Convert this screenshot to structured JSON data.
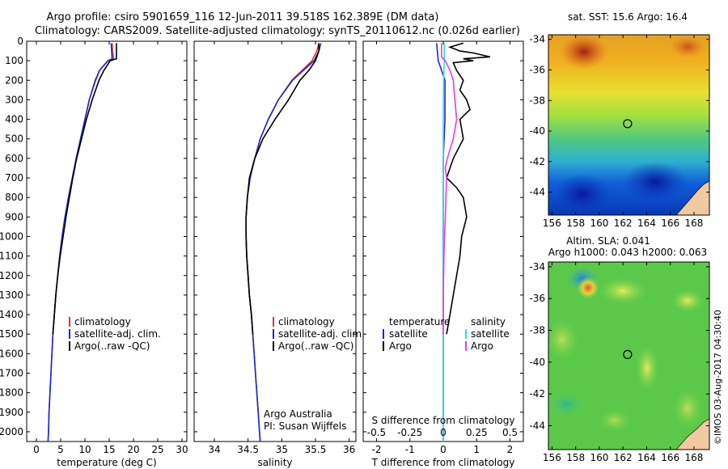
{
  "header": {
    "title_line1": "Argo profile: csiro 5901659_116 12-Jun-2011 39.518S 162.389E (DM data)",
    "title_line2": "Climatology: CARS2009. Satellite-adjusted climatology: synTS_20110612.nc (0.026d earlier)"
  },
  "colors": {
    "climatology": "#e8322a",
    "satellite": "#1a2ad0",
    "argo": "#000000",
    "s_satellite": "#33e0e0",
    "s_argo": "#e63be6"
  },
  "chart_data": [
    {
      "type": "line",
      "name": "temperature-profile",
      "xlabel": "temperature (deg C)",
      "ylabel": "",
      "xlim": [
        -2,
        31
      ],
      "ylim": [
        0,
        2050
      ],
      "xticks": [
        0,
        5,
        10,
        15,
        20,
        25,
        30
      ],
      "yticks": [
        0,
        100,
        200,
        300,
        400,
        500,
        600,
        700,
        800,
        900,
        1000,
        1100,
        1200,
        1300,
        1400,
        1500,
        1600,
        1700,
        1800,
        1900,
        2000
      ],
      "legend": [
        "climatology",
        "satellite-adj. clim.",
        "Argo(..raw -QC)"
      ],
      "series": [
        {
          "name": "climatology",
          "depth": [
            10,
            50,
            90,
            100,
            150,
            200,
            300,
            400,
            500,
            600,
            700,
            800,
            900,
            1000,
            1100,
            1200,
            1300,
            1400,
            1500,
            1600,
            1700,
            1800,
            1900,
            2000,
            2050
          ],
          "values": [
            15.6,
            15.7,
            15.9,
            14.8,
            13.0,
            12.1,
            10.9,
            10.0,
            9.1,
            8.2,
            7.4,
            6.6,
            5.9,
            5.3,
            4.8,
            4.4,
            4.0,
            3.7,
            3.4,
            3.2,
            3.0,
            2.8,
            2.6,
            2.5,
            2.4
          ]
        },
        {
          "name": "satellite-adj. clim.",
          "depth": [
            10,
            50,
            90,
            100,
            150,
            200,
            300,
            400,
            500,
            600,
            700,
            800,
            900,
            1000,
            1100,
            1200,
            1300,
            1400,
            1500,
            1600,
            1700,
            1800,
            1900,
            2000,
            2050
          ],
          "values": [
            15.4,
            15.5,
            15.6,
            14.7,
            13.0,
            12.2,
            10.9,
            10.0,
            9.1,
            8.2,
            7.4,
            6.6,
            5.9,
            5.3,
            4.8,
            4.4,
            4.0,
            3.7,
            3.4,
            3.2,
            3.0,
            2.8,
            2.6,
            2.5,
            2.4
          ]
        },
        {
          "name": "Argo(..raw -QC)",
          "depth": [
            10,
            50,
            90,
            100,
            150,
            200,
            300,
            400,
            500,
            600,
            700,
            800,
            900,
            1000,
            1100,
            1200,
            1300,
            1400,
            1500
          ],
          "values": [
            16.5,
            16.5,
            16.5,
            15.2,
            13.9,
            12.9,
            11.5,
            10.3,
            9.3,
            8.3,
            7.5,
            6.8,
            6.1,
            5.5,
            4.9,
            4.4,
            4.0,
            3.7,
            3.4
          ]
        }
      ]
    },
    {
      "type": "line",
      "name": "salinity-profile",
      "xlabel": "salinity",
      "xlim": [
        33.7,
        36.1
      ],
      "ylim": [
        0,
        2050
      ],
      "xticks": [
        34,
        34.5,
        35,
        35.5,
        36
      ],
      "legend": [
        "climatology",
        "satellite-adj. clim.",
        "Argo(..raw -QC)"
      ],
      "annotation": [
        "Argo Australia",
        "PI: Susan Wijffels"
      ],
      "series": [
        {
          "name": "climatology",
          "depth": [
            10,
            50,
            100,
            150,
            200,
            300,
            400,
            500,
            600,
            700,
            800,
            900,
            1000,
            1100,
            1200,
            1300,
            1400,
            1500,
            1600,
            1700,
            1800,
            1900,
            2000,
            2050
          ],
          "values": [
            35.55,
            35.52,
            35.45,
            35.3,
            35.15,
            34.95,
            34.8,
            34.68,
            34.6,
            34.53,
            34.49,
            34.47,
            34.47,
            34.48,
            34.5,
            34.52,
            34.55,
            34.57,
            34.59,
            34.61,
            34.63,
            34.65,
            34.67,
            34.68
          ]
        },
        {
          "name": "satellite-adj. clim.",
          "depth": [
            10,
            50,
            100,
            150,
            200,
            300,
            400,
            500,
            600,
            700,
            800,
            900,
            1000,
            1100,
            1200,
            1300,
            1400,
            1500,
            1600,
            1700,
            1800,
            1900,
            2000,
            2050
          ],
          "values": [
            35.58,
            35.55,
            35.48,
            35.32,
            35.16,
            34.95,
            34.8,
            34.68,
            34.6,
            34.53,
            34.49,
            34.47,
            34.47,
            34.48,
            34.5,
            34.52,
            34.55,
            34.57,
            34.59,
            34.61,
            34.63,
            34.65,
            34.67,
            34.68
          ]
        },
        {
          "name": "Argo(..raw -QC)",
          "depth": [
            10,
            50,
            100,
            150,
            200,
            300,
            400,
            500,
            600,
            700,
            800,
            900,
            1000,
            1100,
            1200,
            1300,
            1400,
            1500
          ],
          "values": [
            35.55,
            35.55,
            35.5,
            35.4,
            35.27,
            35.1,
            34.9,
            34.72,
            34.6,
            34.52,
            34.49,
            34.47,
            34.47,
            34.48,
            34.5,
            34.52,
            34.55,
            34.57
          ]
        }
      ]
    },
    {
      "type": "line",
      "name": "difference-profile",
      "xlabel": "T difference from climatology",
      "xlabel_top": "S difference from climatology",
      "xlim": [
        -2.4,
        2.4
      ],
      "ylim": [
        0,
        2050
      ],
      "xticks": [
        -2,
        -1,
        0,
        1,
        2
      ],
      "xticklabels": [
        "-2",
        "-1",
        "0",
        "1",
        "2"
      ],
      "s_ticks": [
        "-0.5",
        "-0.25",
        "0",
        "0.25",
        "0.5"
      ],
      "legend_temperature": [
        "temperature",
        "satellite",
        "Argo"
      ],
      "legend_salinity": [
        "salinity",
        "satellite",
        "Argo"
      ],
      "series": [
        {
          "name": "temperature satellite",
          "depth": [
            10,
            100,
            200,
            400,
            600,
            800,
            1000,
            1500,
            2000,
            2050
          ],
          "values": [
            -0.2,
            -0.15,
            0.05,
            0.05,
            0.0,
            0.0,
            0.0,
            0.0,
            0.0,
            0.0
          ]
        },
        {
          "name": "temperature Argo",
          "depth": [
            10,
            30,
            50,
            60,
            80,
            90,
            100,
            110,
            150,
            200,
            250,
            300,
            350,
            400,
            500,
            600,
            700,
            750,
            800,
            900,
            1000,
            1100,
            1200,
            1300,
            1400,
            1500
          ],
          "values": [
            0.6,
            0.2,
            0.5,
            0.9,
            1.4,
            0.6,
            0.9,
            0.3,
            0.4,
            0.6,
            0.5,
            0.7,
            0.8,
            0.5,
            0.6,
            0.3,
            0.1,
            0.4,
            0.6,
            0.7,
            0.55,
            0.5,
            0.4,
            0.3,
            0.2,
            0.1
          ]
        },
        {
          "name": "salinity satellite",
          "depth": [
            10,
            100,
            200,
            400,
            600,
            800,
            1000,
            1500,
            2000,
            2050
          ],
          "values": [
            0.03,
            0.03,
            0.01,
            0.0,
            0.0,
            0.0,
            0.0,
            0.0,
            0.0,
            0.0
          ]
        },
        {
          "name": "salinity Argo",
          "depth": [
            10,
            80,
            100,
            150,
            200,
            300,
            400,
            500,
            600,
            650,
            700,
            800,
            900,
            1000,
            1100,
            1200,
            1300,
            1400,
            1500
          ],
          "values": [
            -0.05,
            -0.05,
            0.06,
            0.2,
            0.3,
            0.35,
            0.4,
            0.3,
            0.12,
            0.06,
            0.1,
            0.08,
            0.06,
            0.04,
            0.02,
            0.01,
            0.0,
            0.0,
            0.0
          ]
        }
      ]
    },
    {
      "type": "heatmap",
      "name": "sst-map",
      "title": "sat. SST: 15.6 Argo: 16.4",
      "xlim": [
        155.7,
        169.3
      ],
      "ylim": [
        -45.5,
        -33.7
      ],
      "xticks": [
        156,
        158,
        160,
        162,
        164,
        166,
        168
      ],
      "yticks": [
        -34,
        -36,
        -38,
        -40,
        -42,
        -44
      ],
      "marker": {
        "lon": 162.389,
        "lat": -39.518
      }
    },
    {
      "type": "heatmap",
      "name": "sla-map",
      "title_line1": "Altim. SLA: 0.041",
      "title_line2": "Argo h1000: 0.043 h2000: 0.063",
      "xlim": [
        155.7,
        169.3
      ],
      "ylim": [
        -45.5,
        -33.7
      ],
      "xticks": [
        156,
        158,
        160,
        162,
        164,
        166,
        168
      ],
      "yticks": [
        -34,
        -36,
        -38,
        -40,
        -42,
        -44
      ],
      "marker": {
        "lon": 162.389,
        "lat": -39.518
      }
    }
  ],
  "footer": {
    "stamp": "©IMOS 03-Aug-2017 04:30:40"
  }
}
